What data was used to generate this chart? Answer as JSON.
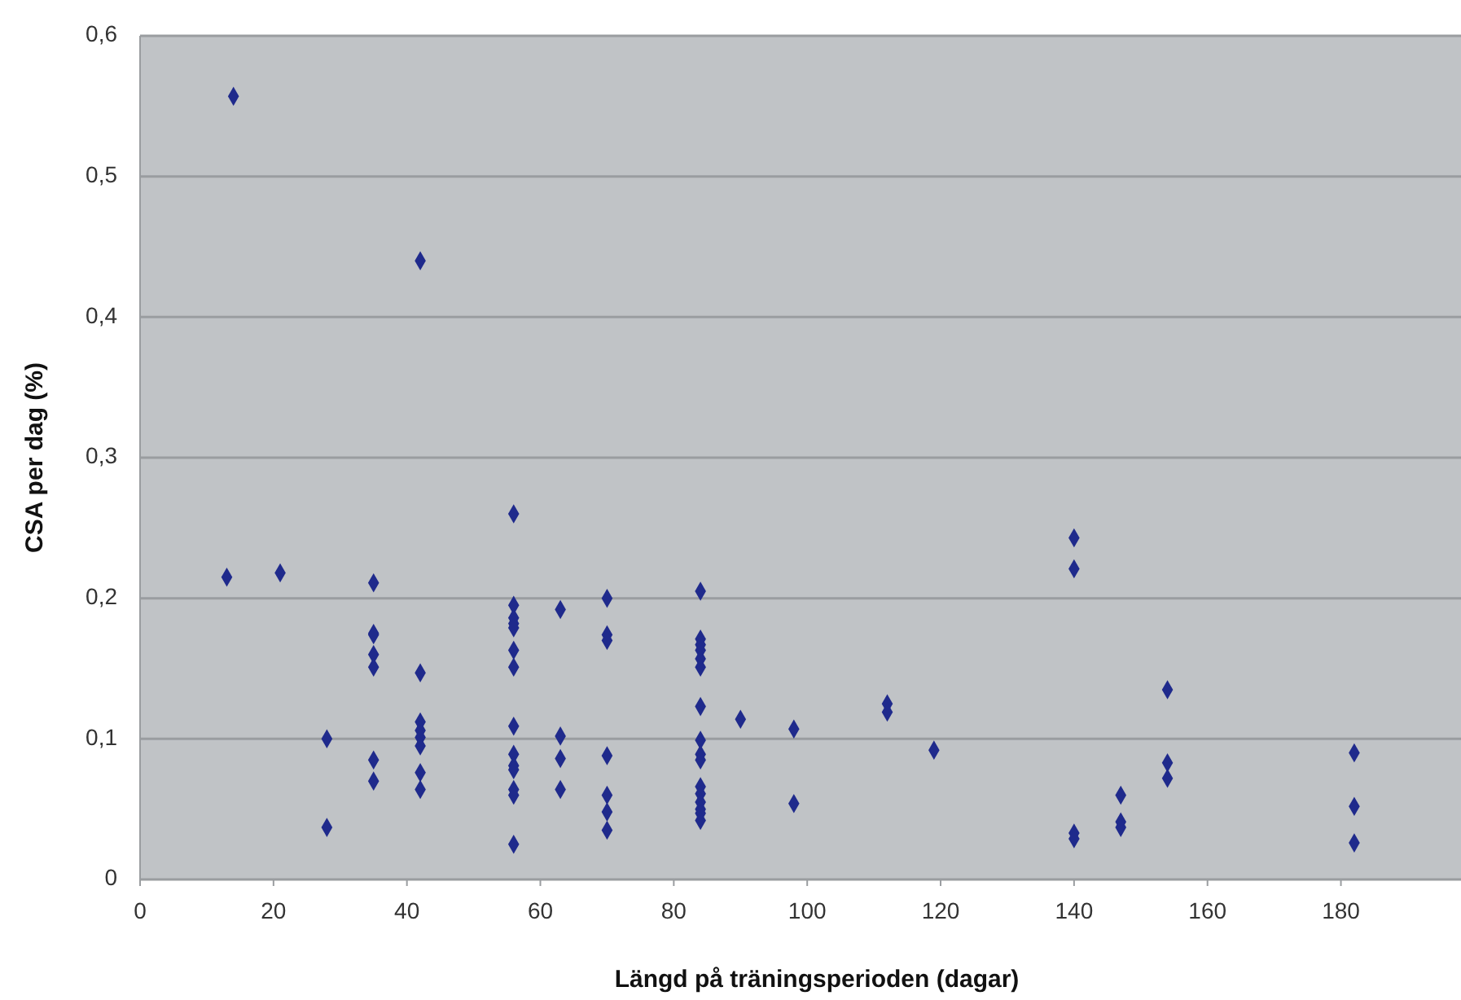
{
  "chart_data": {
    "type": "scatter",
    "xlabel": "Längd på träningsperioden (dagar)",
    "ylabel": "CSA per dag (%)",
    "xlim": [
      0,
      198
    ],
    "xticks": [
      0,
      20,
      40,
      60,
      80,
      100,
      120,
      140,
      160,
      180
    ],
    "ylim": [
      0,
      0.6
    ],
    "yticks": [
      {
        "value": 0,
        "label": "0"
      },
      {
        "value": 0.1,
        "label": "0,1"
      },
      {
        "value": 0.2,
        "label": "0,2"
      },
      {
        "value": 0.3,
        "label": "0,3"
      },
      {
        "value": 0.4,
        "label": "0,4"
      },
      {
        "value": 0.5,
        "label": "0,5"
      },
      {
        "value": 0.6,
        "label": "0,6"
      }
    ],
    "grid": "y",
    "marker": "diamond",
    "series": [
      {
        "color": "#1f2a8c",
        "x": [
          14,
          42,
          13,
          21,
          28,
          28,
          35,
          35,
          35,
          35,
          35,
          35,
          35,
          42,
          42,
          42,
          42,
          42,
          42,
          42,
          56,
          56,
          56,
          56,
          56,
          56,
          56,
          56,
          56,
          56,
          56,
          56,
          56,
          56,
          63,
          63,
          63,
          63,
          70,
          70,
          70,
          70,
          70,
          70,
          70,
          84,
          84,
          84,
          84,
          84,
          84,
          84,
          84,
          84,
          84,
          84,
          84,
          84,
          84,
          84,
          84,
          90,
          98,
          98,
          112,
          112,
          119,
          140,
          140,
          140,
          140,
          147,
          147,
          147,
          154,
          154,
          154,
          182,
          182,
          182
        ],
        "values": [
          0.557,
          0.44,
          0.215,
          0.218,
          0.1,
          0.037,
          0.211,
          0.175,
          0.174,
          0.16,
          0.151,
          0.085,
          0.07,
          0.147,
          0.112,
          0.106,
          0.101,
          0.095,
          0.076,
          0.064,
          0.26,
          0.195,
          0.186,
          0.182,
          0.179,
          0.163,
          0.151,
          0.109,
          0.089,
          0.081,
          0.078,
          0.064,
          0.06,
          0.025,
          0.192,
          0.102,
          0.086,
          0.064,
          0.2,
          0.174,
          0.17,
          0.088,
          0.06,
          0.048,
          0.035,
          0.205,
          0.171,
          0.167,
          0.163,
          0.157,
          0.151,
          0.123,
          0.099,
          0.089,
          0.085,
          0.066,
          0.061,
          0.055,
          0.05,
          0.047,
          0.042,
          0.114,
          0.107,
          0.054,
          0.125,
          0.119,
          0.092,
          0.243,
          0.221,
          0.033,
          0.029,
          0.06,
          0.041,
          0.037,
          0.135,
          0.083,
          0.072,
          0.09,
          0.052,
          0.026
        ]
      }
    ]
  }
}
